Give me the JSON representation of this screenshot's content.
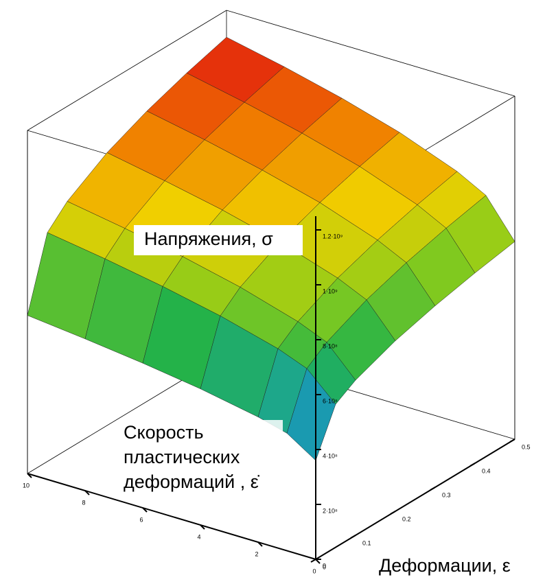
{
  "chart_data": {
    "type": "surface",
    "x_label": "Деформации, ε",
    "y_label": [
      "Скорость",
      "пластических",
      "деформаций , ε̇"
    ],
    "z_label": "Напряжения, σ",
    "x": [
      0,
      0.05,
      0.1,
      0.2,
      0.3,
      0.4,
      0.5
    ],
    "y": [
      0,
      1,
      2,
      4,
      6,
      8,
      10
    ],
    "z": [
      [
        360000000.0,
        521000000.0,
        565000000.0,
        621000000.0,
        661000000.0,
        693000000.0,
        720000000.0
      ],
      [
        428000000.0,
        620000000.0,
        672000000.0,
        739000000.0,
        787000000.0,
        825000000.0,
        857000000.0
      ],
      [
        456000000.0,
        661000000.0,
        716000000.0,
        787000000.0,
        838000000.0,
        879000000.0,
        913000000.0
      ],
      [
        496000000.0,
        718000000.0,
        779000000.0,
        856000000.0,
        912000000.0,
        956000000.0,
        993000000.0
      ],
      [
        527000000.0,
        763000000.0,
        828000000.0,
        910000000.0,
        968000000.0,
        1015000000.0,
        1055000000.0
      ],
      [
        553000000.0,
        801000000.0,
        868000000.0,
        954000000.0,
        1016000000.0,
        1065000000.0,
        1107000000.0
      ],
      [
        576000000.0,
        834000000.0,
        904000000.0,
        994000000.0,
        1058000000.0,
        1109000000.0,
        1152000000.0
      ]
    ],
    "xlim": [
      0,
      0.5
    ],
    "xticks": [
      0,
      0.1,
      0.2,
      0.3,
      0.4,
      0.5
    ],
    "ylim": [
      0,
      10
    ],
    "yticks": [
      0,
      2,
      4,
      6,
      8,
      10
    ],
    "zlim": [
      0,
      1250000000.0
    ],
    "zticks": [
      0,
      {
        "value": 200000000.0,
        "label": "2·10⁸"
      },
      {
        "value": 400000000.0,
        "label": "4·10⁸"
      },
      {
        "value": 600000000.0,
        "label": "6·10⁸"
      },
      {
        "value": 800000000.0,
        "label": "8·10⁸"
      },
      {
        "value": 1000000000.0,
        "label": "1·10⁹"
      },
      {
        "value": 1200000000.0,
        "label": "1.2·10⁹"
      }
    ],
    "colorscale": [
      "#1f4fb0",
      "#1aa0b0",
      "#22b24a",
      "#8ccc1a",
      "#f0d000",
      "#f07800",
      "#e01010"
    ]
  }
}
